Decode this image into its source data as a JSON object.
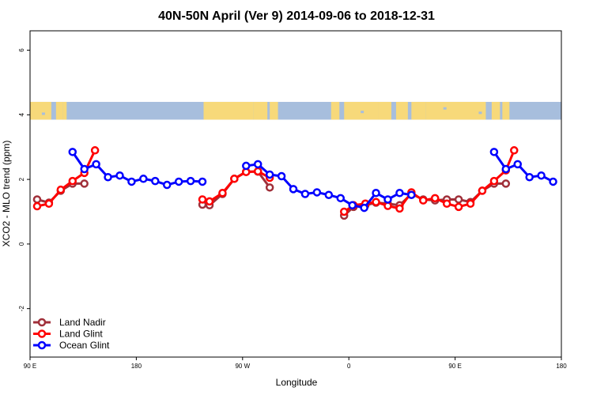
{
  "chart_data": {
    "type": "line",
    "title": "40N-50N April (Ver 9)   2014-09-06 to 2018-12-31",
    "xlabel": "Longitude",
    "ylabel": "XCO2 - MLO trend (ppm)",
    "xlim": [
      90,
      540
    ],
    "ylim": [
      -3.5,
      6.6
    ],
    "x_ticks": [
      {
        "value": 90,
        "label": "90 E"
      },
      {
        "value": 180,
        "label": "180"
      },
      {
        "value": 270,
        "label": "90 W"
      },
      {
        "value": 360,
        "label": "0"
      },
      {
        "value": 450,
        "label": "90 E"
      },
      {
        "value": 540,
        "label": "180"
      }
    ],
    "y_ticks": [
      {
        "value": -2,
        "label": "-2"
      },
      {
        "value": 0,
        "label": "0"
      },
      {
        "value": 2,
        "label": "2"
      },
      {
        "value": 4,
        "label": "4"
      },
      {
        "value": 6,
        "label": "6"
      }
    ],
    "map_band": {
      "ymin": 3.85,
      "ymax": 4.4,
      "ocean_color": "#a7bedd",
      "land_color": "#f7d97a"
    },
    "legend_position": "bottom-left",
    "series": [
      {
        "name": "Land Nadir",
        "color": "#a0303a",
        "segments": [
          [
            [
              96,
              1.38
            ],
            [
              106,
              1.28
            ],
            [
              116,
              1.65
            ],
            [
              126,
              1.87
            ],
            [
              136,
              1.87
            ]
          ],
          [
            [
              236,
              1.22
            ],
            [
              242,
              1.2
            ],
            [
              253,
              1.55
            ],
            [
              263,
              2.02
            ],
            [
              273,
              2.24
            ],
            [
              283,
              2.24
            ],
            [
              293,
              1.75
            ]
          ],
          [
            [
              356,
              0.88
            ],
            [
              364,
              1.15
            ],
            [
              374,
              1.2
            ],
            [
              383,
              1.28
            ],
            [
              393,
              1.25
            ],
            [
              403,
              1.2
            ],
            [
              413,
              1.55
            ],
            [
              423,
              1.38
            ],
            [
              433,
              1.35
            ],
            [
              443,
              1.38
            ],
            [
              453,
              1.38
            ],
            [
              463,
              1.3
            ],
            [
              473,
              1.65
            ],
            [
              483,
              1.87
            ],
            [
              493,
              1.87
            ]
          ]
        ]
      },
      {
        "name": "Land Glint",
        "color": "#ff0000",
        "segments": [
          [
            [
              96,
              1.17
            ],
            [
              106,
              1.25
            ],
            [
              116,
              1.68
            ],
            [
              126,
              1.95
            ],
            [
              136,
              2.2
            ],
            [
              145,
              2.9
            ]
          ],
          [
            [
              236,
              1.38
            ],
            [
              242,
              1.32
            ],
            [
              253,
              1.58
            ],
            [
              263,
              2.02
            ],
            [
              273,
              2.23
            ],
            [
              283,
              2.25
            ],
            [
              293,
              2.05
            ]
          ],
          [
            [
              356,
              1.0
            ],
            [
              364,
              1.2
            ],
            [
              374,
              1.25
            ],
            [
              383,
              1.3
            ],
            [
              393,
              1.18
            ],
            [
              403,
              1.1
            ],
            [
              413,
              1.6
            ],
            [
              423,
              1.35
            ],
            [
              433,
              1.42
            ],
            [
              443,
              1.25
            ],
            [
              453,
              1.15
            ],
            [
              463,
              1.25
            ],
            [
              473,
              1.65
            ],
            [
              483,
              1.95
            ],
            [
              493,
              2.28
            ],
            [
              500,
              2.9
            ]
          ]
        ]
      },
      {
        "name": "Ocean Glint",
        "color": "#0000ff",
        "segments": [
          [
            [
              126,
              2.85
            ],
            [
              136,
              2.32
            ],
            [
              146,
              2.47
            ],
            [
              156,
              2.07
            ],
            [
              166,
              2.12
            ],
            [
              176,
              1.93
            ],
            [
              186,
              2.02
            ],
            [
              196,
              1.95
            ],
            [
              206,
              1.83
            ],
            [
              216,
              1.93
            ],
            [
              226,
              1.95
            ],
            [
              236,
              1.93
            ]
          ],
          [
            [
              273,
              2.42
            ],
            [
              283,
              2.47
            ],
            [
              293,
              2.15
            ],
            [
              303,
              2.1
            ],
            [
              313,
              1.7
            ],
            [
              323,
              1.55
            ],
            [
              333,
              1.6
            ],
            [
              343,
              1.52
            ],
            [
              353,
              1.42
            ],
            [
              363,
              1.2
            ],
            [
              373,
              1.12
            ],
            [
              383,
              1.58
            ],
            [
              393,
              1.38
            ],
            [
              403,
              1.58
            ],
            [
              413,
              1.52
            ]
          ],
          [
            [
              483,
              2.85
            ],
            [
              493,
              2.32
            ],
            [
              503,
              2.47
            ],
            [
              513,
              2.07
            ],
            [
              523,
              2.12
            ],
            [
              533,
              1.93
            ]
          ]
        ]
      }
    ]
  }
}
